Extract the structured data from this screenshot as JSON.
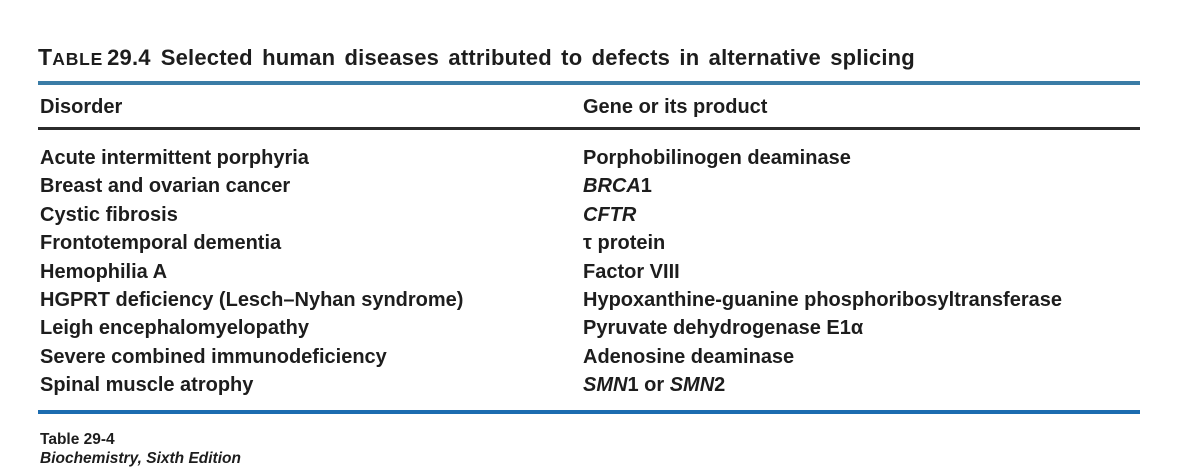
{
  "colors": {
    "text": "#1d1d1d",
    "rule_top": "#3a7ca6",
    "rule_header": "#2b2b2b",
    "rule_bottom": "#1c6cb0"
  },
  "title": {
    "label_initial": "T",
    "label_rest": "ABLE",
    "number": "29.4",
    "text": "Selected human diseases attributed to defects in alternative splicing"
  },
  "table": {
    "columns": [
      "Disorder",
      "Gene or its product"
    ],
    "rows": [
      {
        "disorder": "Acute intermittent porphyria",
        "gene": [
          {
            "t": "Porphobilinogen deaminase",
            "i": false
          }
        ]
      },
      {
        "disorder": "Breast and ovarian cancer",
        "gene": [
          {
            "t": "BRCA",
            "i": true
          },
          {
            "t": "1",
            "i": false
          }
        ]
      },
      {
        "disorder": "Cystic fibrosis",
        "gene": [
          {
            "t": "CFTR",
            "i": true
          }
        ]
      },
      {
        "disorder": "Frontotemporal dementia",
        "gene": [
          {
            "t": "τ protein",
            "i": false
          }
        ]
      },
      {
        "disorder": "Hemophilia A",
        "gene": [
          {
            "t": "Factor VIII",
            "i": false
          }
        ]
      },
      {
        "disorder": "HGPRT deficiency (Lesch–Nyhan syndrome)",
        "gene": [
          {
            "t": "Hypoxanthine-guanine phosphoribosyltransferase",
            "i": false
          }
        ]
      },
      {
        "disorder": "Leigh encephalomyelopathy",
        "gene": [
          {
            "t": "Pyruvate dehydrogenase E1α",
            "i": false
          }
        ]
      },
      {
        "disorder": "Severe combined immunodeficiency",
        "gene": [
          {
            "t": "Adenosine deaminase",
            "i": false
          }
        ]
      },
      {
        "disorder": "Spinal muscle atrophy",
        "gene": [
          {
            "t": "SMN",
            "i": true
          },
          {
            "t": "1 or ",
            "i": false
          },
          {
            "t": "SMN",
            "i": true
          },
          {
            "t": "2",
            "i": false
          }
        ]
      }
    ]
  },
  "footer": {
    "line1": "Table 29-4",
    "line2": "Biochemistry, Sixth Edition"
  }
}
